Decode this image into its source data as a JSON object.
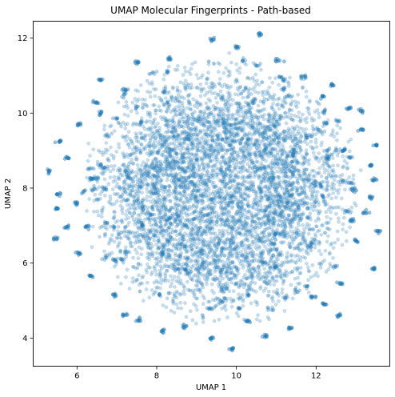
{
  "chart_data": {
    "type": "scatter",
    "title": "UMAP Molecular Fingerprints - Path-based",
    "xlabel": "UMAP 1",
    "ylabel": "UMAP 2",
    "xlim": [
      4.9,
      13.85
    ],
    "ylim": [
      3.25,
      12.45
    ],
    "xticks": [
      6,
      8,
      10,
      12
    ],
    "yticks": [
      4,
      6,
      8,
      10,
      12
    ],
    "grid": false,
    "point_color": "#1f77b4",
    "point_alpha": 0.25,
    "distribution": {
      "center": [
        9.6,
        7.9
      ],
      "radius_x": 3.95,
      "radius_y": 4.1,
      "approx_points": 6000
    },
    "series": [
      {
        "values": [
          {
            "x": 10.58,
            "y": 12.1
          },
          {
            "x": 9.4,
            "y": 11.95
          },
          {
            "x": 10.0,
            "y": 11.75
          },
          {
            "x": 8.3,
            "y": 11.45
          },
          {
            "x": 7.5,
            "y": 11.35
          },
          {
            "x": 11.05,
            "y": 11.4
          },
          {
            "x": 6.6,
            "y": 10.9
          },
          {
            "x": 12.4,
            "y": 10.75
          },
          {
            "x": 12.2,
            "y": 10.45
          },
          {
            "x": 6.45,
            "y": 10.3
          },
          {
            "x": 12.85,
            "y": 10.1
          },
          {
            "x": 13.15,
            "y": 10.05
          },
          {
            "x": 6.05,
            "y": 9.7
          },
          {
            "x": 13.15,
            "y": 9.55
          },
          {
            "x": 5.55,
            "y": 9.25
          },
          {
            "x": 13.5,
            "y": 9.15
          },
          {
            "x": 5.75,
            "y": 8.8
          },
          {
            "x": 13.35,
            "y": 8.6
          },
          {
            "x": 5.3,
            "y": 8.45
          },
          {
            "x": 13.45,
            "y": 8.2
          },
          {
            "x": 5.55,
            "y": 7.85
          },
          {
            "x": 13.35,
            "y": 7.75
          },
          {
            "x": 5.5,
            "y": 7.45
          },
          {
            "x": 13.25,
            "y": 7.35
          },
          {
            "x": 5.75,
            "y": 6.95
          },
          {
            "x": 13.55,
            "y": 6.85
          },
          {
            "x": 5.45,
            "y": 6.65
          },
          {
            "x": 13.0,
            "y": 6.6
          },
          {
            "x": 6.05,
            "y": 6.25
          },
          {
            "x": 13.45,
            "y": 5.85
          },
          {
            "x": 6.35,
            "y": 5.65
          },
          {
            "x": 12.6,
            "y": 5.45
          },
          {
            "x": 6.9,
            "y": 5.15
          },
          {
            "x": 12.2,
            "y": 4.9
          },
          {
            "x": 7.2,
            "y": 4.6
          },
          {
            "x": 12.55,
            "y": 4.6
          },
          {
            "x": 7.55,
            "y": 4.5
          },
          {
            "x": 11.35,
            "y": 4.25
          },
          {
            "x": 8.15,
            "y": 4.2
          },
          {
            "x": 9.4,
            "y": 4.0
          },
          {
            "x": 10.7,
            "y": 4.05
          },
          {
            "x": 9.9,
            "y": 3.7
          },
          {
            "x": 8.7,
            "y": 4.3
          },
          {
            "x": 10.3,
            "y": 4.45
          },
          {
            "x": 11.9,
            "y": 5.1
          },
          {
            "x": 6.6,
            "y": 10.0
          },
          {
            "x": 7.2,
            "y": 10.6
          },
          {
            "x": 11.7,
            "y": 10.95
          },
          {
            "x": 12.7,
            "y": 9.0
          },
          {
            "x": 6.35,
            "y": 8.25
          },
          {
            "x": 12.95,
            "y": 7.95
          },
          {
            "x": 6.0,
            "y": 7.6
          },
          {
            "x": 12.9,
            "y": 7.15
          },
          {
            "x": 6.25,
            "y": 6.95
          }
        ]
      }
    ]
  }
}
